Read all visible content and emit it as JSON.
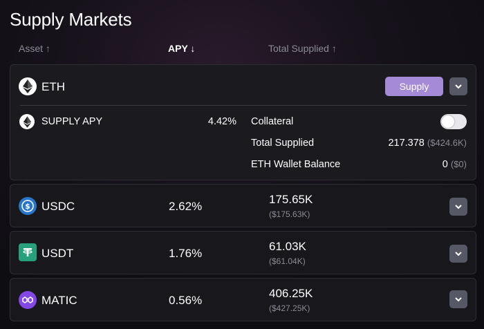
{
  "page": {
    "title": "Supply Markets"
  },
  "columns": {
    "asset": "Asset ↑",
    "apy": "APY ↓",
    "total": "Total Supplied ↑"
  },
  "expanded": {
    "asset": "ETH",
    "supply_button": "Supply",
    "supply_apy_label": "SUPPLY APY",
    "supply_apy_value": "4.42%",
    "collateral_label": "Collateral",
    "collateral_enabled": false,
    "total_supplied_label": "Total Supplied",
    "total_supplied_value": "217.378",
    "total_supplied_usd": "($424.6K)",
    "wallet_label": "ETH Wallet Balance",
    "wallet_value": "0",
    "wallet_usd": "($0)"
  },
  "rows": [
    {
      "asset": "USDC",
      "apy": "2.62%",
      "total": "175.65K",
      "total_usd": "($175.63K)",
      "icon": "usdc-icon",
      "color": "#2775ca"
    },
    {
      "asset": "USDT",
      "apy": "1.76%",
      "total": "61.03K",
      "total_usd": "($61.04K)",
      "icon": "usdt-icon",
      "color": "#26a17b"
    },
    {
      "asset": "MATIC",
      "apy": "0.56%",
      "total": "406.25K",
      "total_usd": "($427.25K)",
      "icon": "matic-icon",
      "color": "#8247e5"
    }
  ],
  "colors": {
    "accent": "#a58ad8",
    "card": "#17171c",
    "muted": "#8c8a96"
  }
}
